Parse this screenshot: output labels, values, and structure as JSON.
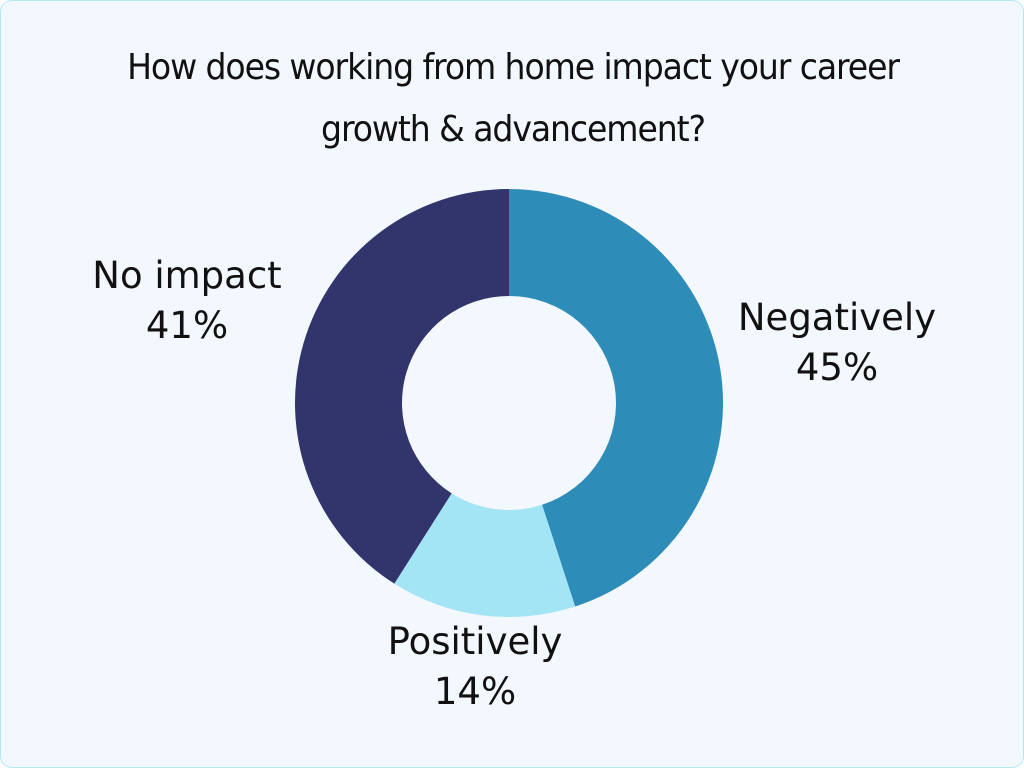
{
  "title": {
    "line1": "How does working from home impact your career",
    "line2": "growth & advancement?"
  },
  "labels": {
    "negatively": {
      "name": "Negatively",
      "value": "45%"
    },
    "positively": {
      "name": "Positively",
      "value": "14%"
    },
    "no_impact": {
      "name": "No impact",
      "value": "41%"
    }
  },
  "colors": {
    "negatively": "#2e8cb9",
    "positively": "#a3e4f5",
    "no_impact": "#31356c",
    "background": "#f3f8fe",
    "border": "#b6e6f3"
  },
  "chart_data": {
    "type": "pie",
    "variant": "donut",
    "title": "How does working from home impact your career growth & advancement?",
    "categories": [
      "Negatively",
      "Positively",
      "No impact"
    ],
    "values": [
      45,
      14,
      41
    ],
    "unit": "%",
    "colors": [
      "#2e8cb9",
      "#a3e4f5",
      "#31356c"
    ],
    "start_angle": "12 o'clock, clockwise",
    "legend": "none (direct labels)"
  }
}
